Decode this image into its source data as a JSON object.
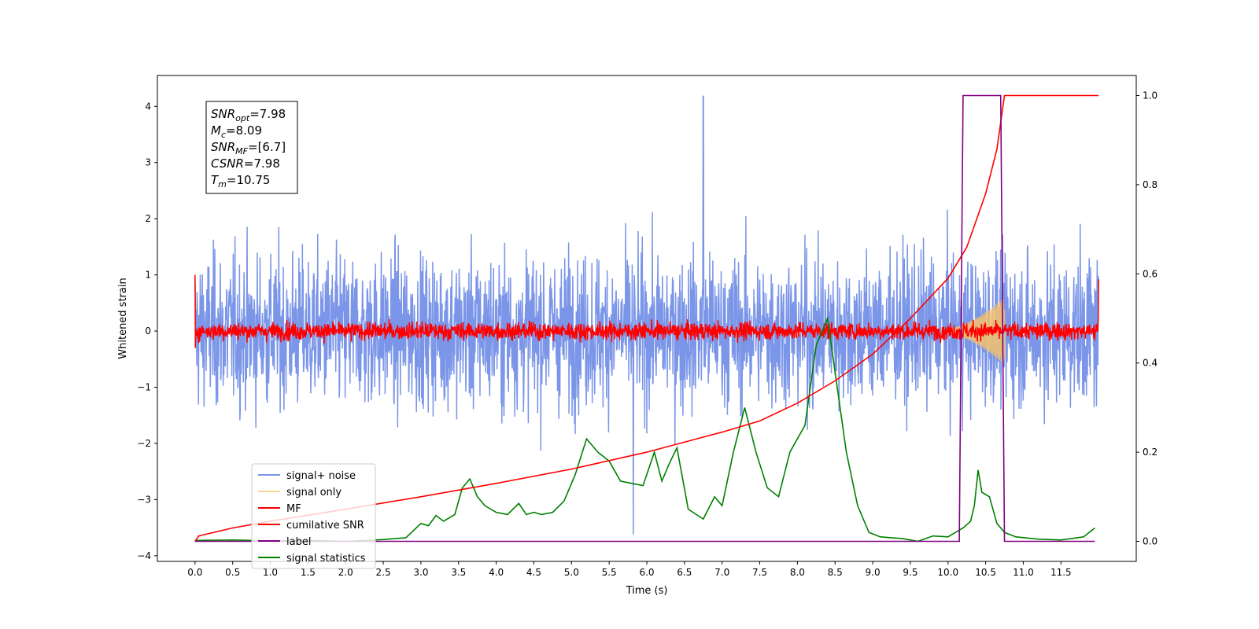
{
  "chart_data": {
    "type": "line",
    "xlabel": "Time (s)",
    "ylabel": "Whitened strain",
    "xlim": [
      -0.5,
      12.5
    ],
    "ylim": [
      -4.1,
      4.55
    ],
    "ylim_right": [
      -0.045,
      1.045
    ],
    "x_ticks": [
      "0.0",
      "0.5",
      "1.0",
      "1.5",
      "2.0",
      "2.5",
      "3.0",
      "3.5",
      "4.0",
      "4.5",
      "5.0",
      "5.5",
      "6.0",
      "6.5",
      "7.0",
      "7.5",
      "8.0",
      "8.5",
      "9.0",
      "9.5",
      "10.0",
      "10.5",
      "11.0",
      "11.5"
    ],
    "y_ticks": [
      "4",
      "3",
      "2",
      "1",
      "0",
      "−1",
      "−2",
      "−3",
      "−4"
    ],
    "y_right_ticks": [
      "1.0",
      "0.8",
      "0.6",
      "0.4",
      "0.2",
      "0.0"
    ],
    "legend_position": "lower-left",
    "stats_box": [
      {
        "sym": "SNR",
        "sub": "opt",
        "value": "=7.98"
      },
      {
        "sym": "M",
        "sub": "c",
        "value": "=8.09"
      },
      {
        "sym": "SNR",
        "sub": "MF",
        "value": "=[6.7]"
      },
      {
        "sym": "CSNR",
        "sub": "",
        "value": "=7.98"
      },
      {
        "sym": "T",
        "sub": "m",
        "value": "=10.75"
      }
    ],
    "series": [
      {
        "name": "signal+ noise",
        "color": "#7b96e8",
        "axis": "left",
        "description": "whitened strain with noise, amplitude mostly within ±2.5, peaks up to 4.2 near 6.75s, troughs to -3.6 near 5.8s",
        "range_x": [
          0.0,
          12.0
        ]
      },
      {
        "name": "signal only",
        "color": "#f5c26b",
        "axis": "left",
        "description": "chirp growing from ~0 to ±0.6 between 10.0s and 10.75s",
        "range_x": [
          10.0,
          10.75
        ]
      },
      {
        "name": "MF",
        "color": "#ff0000",
        "axis": "left",
        "description": "matched filter output, amplitude about ±0.3 with spikes to 1.0 at the ends",
        "range_x": [
          0.0,
          12.0
        ]
      },
      {
        "name": "cumilative SNR",
        "color": "#ff0000",
        "axis": "right",
        "points": [
          [
            0.0,
            0.0
          ],
          [
            0.05,
            0.012
          ],
          [
            0.5,
            0.03
          ],
          [
            1.0,
            0.045
          ],
          [
            2.0,
            0.072
          ],
          [
            3.0,
            0.1
          ],
          [
            4.0,
            0.13
          ],
          [
            5.0,
            0.162
          ],
          [
            6.0,
            0.2
          ],
          [
            7.0,
            0.245
          ],
          [
            7.5,
            0.27
          ],
          [
            8.0,
            0.31
          ],
          [
            8.5,
            0.36
          ],
          [
            9.0,
            0.42
          ],
          [
            9.5,
            0.5
          ],
          [
            10.0,
            0.59
          ],
          [
            10.25,
            0.66
          ],
          [
            10.5,
            0.78
          ],
          [
            10.65,
            0.88
          ],
          [
            10.75,
            1.0
          ],
          [
            12.0,
            1.0
          ]
        ]
      },
      {
        "name": "label",
        "color": "#800080",
        "axis": "right",
        "points": [
          [
            0.0,
            0.0
          ],
          [
            10.15,
            0.0
          ],
          [
            10.2,
            1.0
          ],
          [
            10.7,
            1.0
          ],
          [
            10.75,
            0.0
          ],
          [
            11.95,
            0.0
          ]
        ]
      },
      {
        "name": "signal statistics",
        "color": "#008000",
        "axis": "right",
        "points": [
          [
            0.0,
            0.002
          ],
          [
            0.5,
            0.003
          ],
          [
            1.0,
            0.001
          ],
          [
            1.5,
            0.002
          ],
          [
            2.0,
            0.0
          ],
          [
            2.5,
            0.004
          ],
          [
            2.8,
            0.008
          ],
          [
            3.0,
            0.04
          ],
          [
            3.1,
            0.035
          ],
          [
            3.2,
            0.058
          ],
          [
            3.3,
            0.045
          ],
          [
            3.45,
            0.06
          ],
          [
            3.55,
            0.12
          ],
          [
            3.65,
            0.14
          ],
          [
            3.75,
            0.1
          ],
          [
            3.85,
            0.08
          ],
          [
            4.0,
            0.065
          ],
          [
            4.15,
            0.06
          ],
          [
            4.3,
            0.085
          ],
          [
            4.4,
            0.06
          ],
          [
            4.5,
            0.065
          ],
          [
            4.6,
            0.06
          ],
          [
            4.75,
            0.065
          ],
          [
            4.9,
            0.09
          ],
          [
            5.05,
            0.15
          ],
          [
            5.2,
            0.23
          ],
          [
            5.35,
            0.2
          ],
          [
            5.5,
            0.18
          ],
          [
            5.65,
            0.135
          ],
          [
            5.8,
            0.13
          ],
          [
            5.95,
            0.125
          ],
          [
            6.1,
            0.2
          ],
          [
            6.2,
            0.135
          ],
          [
            6.3,
            0.175
          ],
          [
            6.4,
            0.21
          ],
          [
            6.55,
            0.072
          ],
          [
            6.75,
            0.05
          ],
          [
            6.9,
            0.1
          ],
          [
            7.0,
            0.08
          ],
          [
            7.15,
            0.2
          ],
          [
            7.3,
            0.3
          ],
          [
            7.45,
            0.2
          ],
          [
            7.6,
            0.12
          ],
          [
            7.75,
            0.1
          ],
          [
            7.9,
            0.2
          ],
          [
            8.1,
            0.26
          ],
          [
            8.25,
            0.44
          ],
          [
            8.4,
            0.5
          ],
          [
            8.5,
            0.38
          ],
          [
            8.65,
            0.2
          ],
          [
            8.8,
            0.08
          ],
          [
            8.95,
            0.02
          ],
          [
            9.1,
            0.01
          ],
          [
            9.4,
            0.006
          ],
          [
            9.6,
            0.0
          ],
          [
            9.8,
            0.012
          ],
          [
            10.0,
            0.01
          ],
          [
            10.2,
            0.03
          ],
          [
            10.3,
            0.045
          ],
          [
            10.35,
            0.08
          ],
          [
            10.4,
            0.16
          ],
          [
            10.45,
            0.11
          ],
          [
            10.55,
            0.1
          ],
          [
            10.65,
            0.04
          ],
          [
            10.75,
            0.02
          ],
          [
            10.9,
            0.01
          ],
          [
            11.2,
            0.005
          ],
          [
            11.5,
            0.003
          ],
          [
            11.8,
            0.01
          ],
          [
            11.95,
            0.03
          ]
        ]
      }
    ]
  }
}
